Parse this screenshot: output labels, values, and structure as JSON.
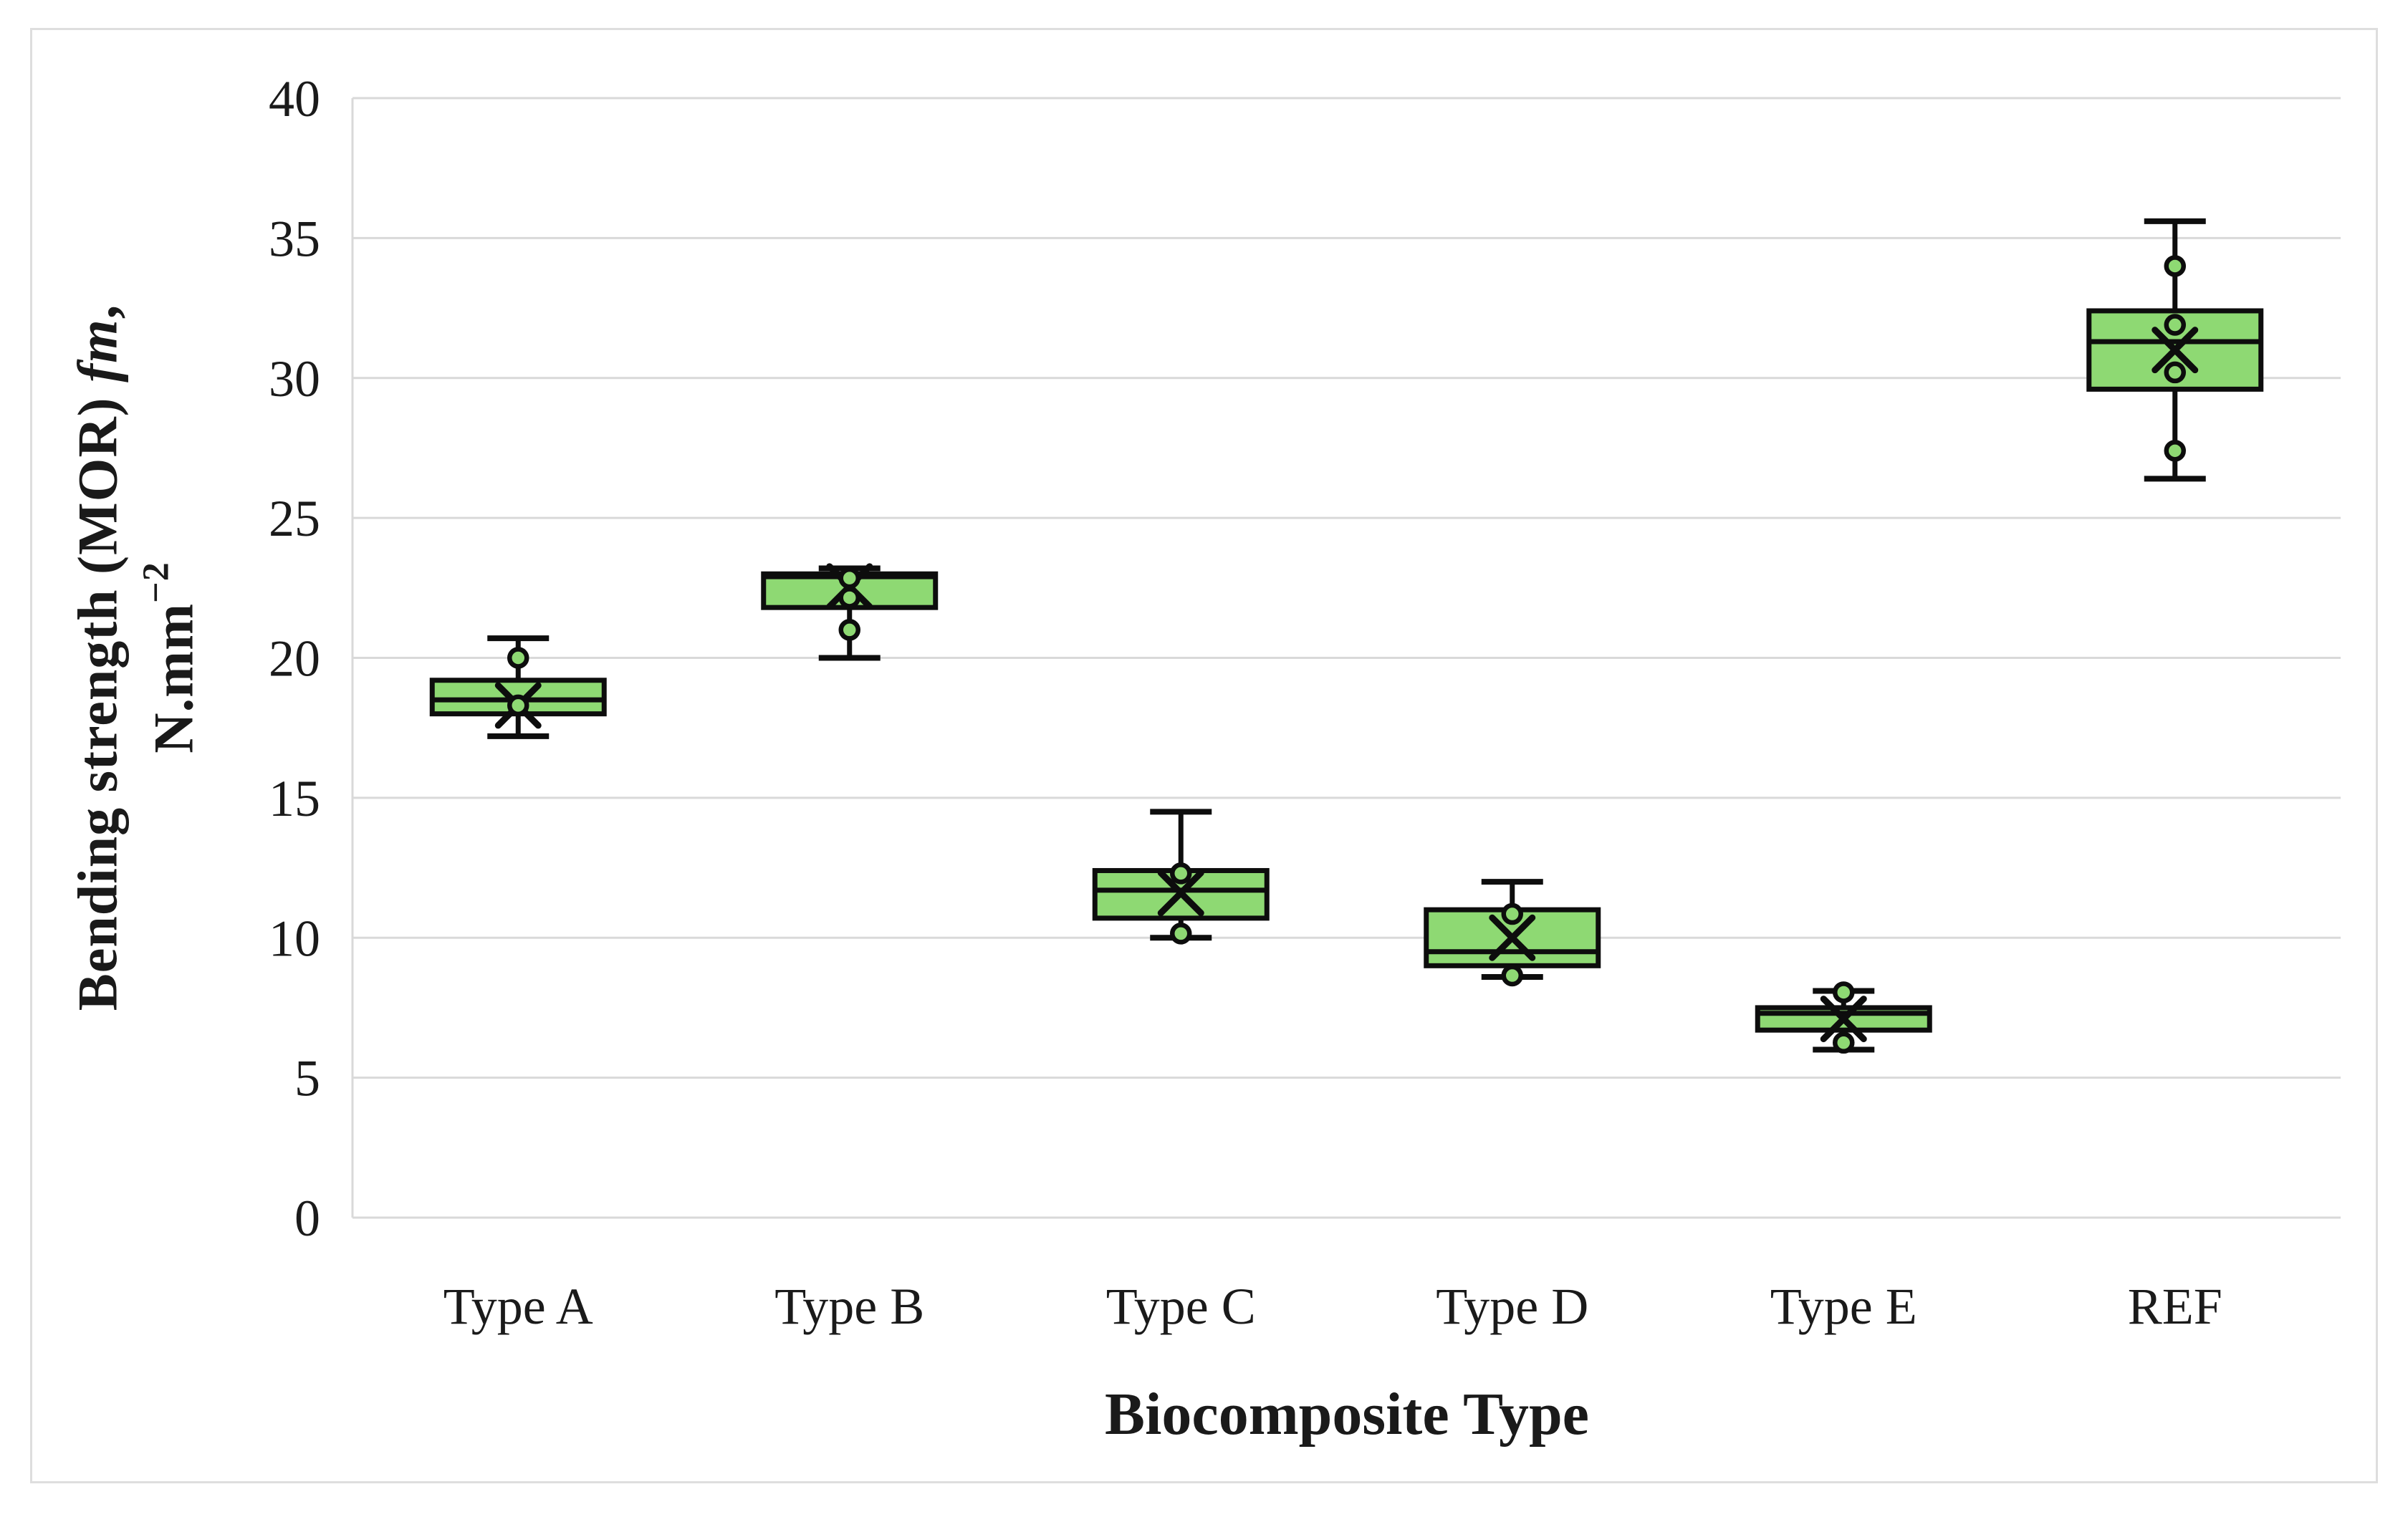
{
  "figure": {
    "background": "#ffffff",
    "border_color": "#dedede"
  },
  "axes": {
    "y_title": {
      "prefix": "Bending strength (MOR) ",
      "italic": "fm",
      "suffix": ",",
      "line2_base": "N.mm",
      "line2_sup": "−2"
    },
    "x_title": "Biocomposite Type"
  },
  "chart_data": {
    "type": "boxplot",
    "title": "",
    "xlabel": "Biocomposite Type",
    "ylabel": "Bending strength (MOR) fm, N.mm−2",
    "ylim": [
      0,
      40
    ],
    "yticks": [
      0,
      5,
      10,
      15,
      20,
      25,
      30,
      35,
      40
    ],
    "grid": "horizontal",
    "legend": "none",
    "colors": {
      "box_fill": "#8ed973",
      "box_stroke": "#0d0d0d",
      "point_fill": "#8ed973",
      "gridline": "#d9d9d9",
      "axis_line": "#d9d9d9",
      "text": "#1a1a1a"
    },
    "categories": [
      "Type A",
      "Type B",
      "Type C",
      "Type D",
      "Type E",
      "REF"
    ],
    "series": [
      {
        "category": "Type A",
        "whisker_low": 17.2,
        "q1": 18.0,
        "median": 18.5,
        "q3": 19.2,
        "whisker_high": 20.7,
        "mean": 18.3,
        "points": [
          20.0,
          18.3
        ]
      },
      {
        "category": "Type B",
        "whisker_low": 20.0,
        "q1": 21.8,
        "median": 22.9,
        "q3": 23.0,
        "whisker_high": 23.2,
        "mean": 22.55,
        "points": [
          22.85,
          22.15,
          21.0
        ]
      },
      {
        "category": "Type C",
        "whisker_low": 10.0,
        "q1": 10.7,
        "median": 11.7,
        "q3": 12.4,
        "whisker_high": 14.5,
        "mean": 11.6,
        "points": [
          12.3,
          10.15
        ]
      },
      {
        "category": "Type D",
        "whisker_low": 8.6,
        "q1": 9.0,
        "median": 9.5,
        "q3": 11.0,
        "whisker_high": 12.0,
        "mean": 10.0,
        "points": [
          10.85,
          8.65
        ]
      },
      {
        "category": "Type E",
        "whisker_low": 6.0,
        "q1": 6.7,
        "median": 7.3,
        "q3": 7.5,
        "whisker_high": 8.1,
        "mean": 7.1,
        "points": [
          8.05,
          6.25
        ]
      },
      {
        "category": "REF",
        "whisker_low": 26.4,
        "q1": 29.6,
        "median": 31.3,
        "q3": 32.4,
        "whisker_high": 35.6,
        "mean": 31.0,
        "points": [
          34.0,
          31.9,
          30.2,
          27.4
        ]
      }
    ]
  }
}
